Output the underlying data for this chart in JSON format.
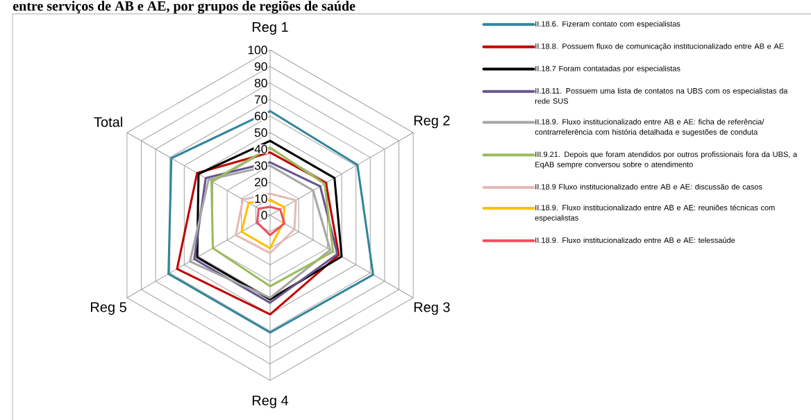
{
  "chart_data": {
    "type": "radar",
    "title": "entre serviços de AB e AE, por grupos de regiões de saúde",
    "categories": [
      "Reg 1",
      "Reg 2",
      "Reg 3",
      "Reg 4",
      "Reg 5",
      "Total"
    ],
    "ylim": [
      0,
      100
    ],
    "yticks": [
      0,
      10,
      20,
      30,
      40,
      50,
      60,
      70,
      80,
      90,
      100
    ],
    "grid": true,
    "legend": "right",
    "series": [
      {
        "name": "II.18.6. Fizeram contato com especialistas",
        "color": "#31859c",
        "values": [
          63,
          61,
          72,
          71,
          71,
          69
        ]
      },
      {
        "name": "II.18.8. Possuem fluxo de comunicação institucionalizado entre AB e AE",
        "color": "#c00000",
        "values": [
          38,
          39,
          48,
          60,
          65,
          51
        ]
      },
      {
        "name": "II.18.7 Foram contatadas por especialistas",
        "color": "#000000",
        "values": [
          45,
          45,
          50,
          51,
          51,
          50
        ]
      },
      {
        "name": "II.18.11. Possuem uma lista de contatos na UBS com os especialistas da rede SUS",
        "color": "#68548f",
        "values": [
          32,
          35,
          47,
          53,
          53,
          45
        ]
      },
      {
        "name": "II.18.9. Fluxo institucionalizado entre AB e AE: ficha de referência/ contrarreferência com história detalhada e sugestões de conduta",
        "color": "#a6a6a6",
        "values": [
          30,
          30,
          42,
          50,
          56,
          43
        ]
      },
      {
        "name": "III.9.21. Depois que foram atendidos por outros profissionais fora da UBS, a EqAB sempre conversou sobre o atendimento",
        "color": "#9bbb59",
        "values": [
          41,
          38,
          44,
          43,
          40,
          41
        ]
      },
      {
        "name": "II.18.9  Fluxo institucionalizado entre AB e AE: discussão de casos",
        "color": "#e6b9b8",
        "values": [
          13,
          18,
          17,
          23,
          24,
          19
        ]
      },
      {
        "name": "II.18.9. Fluxo institucionalizado entre AB e AE: reuniões técnicas com especialistas",
        "color": "#ffc000",
        "values": [
          9,
          10,
          9,
          20,
          20,
          15
        ]
      },
      {
        "name": "II.18.9. Fluxo institucionalizado entre AB e AE: telessaúde",
        "color": "#f04e5e",
        "values": [
          5,
          7,
          10,
          12,
          9,
          8
        ]
      }
    ]
  }
}
